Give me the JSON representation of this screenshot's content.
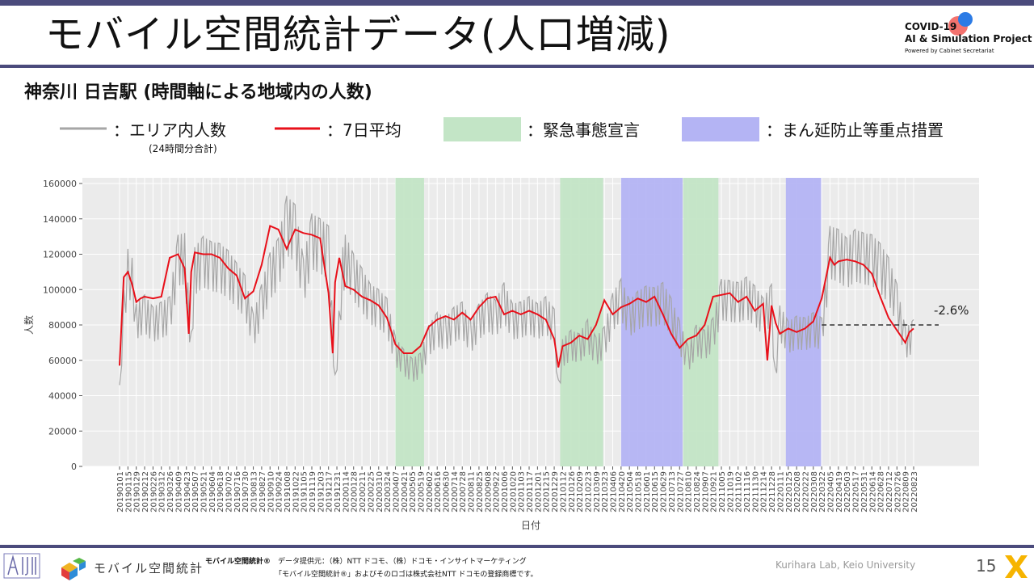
{
  "header": {
    "title": "モバイル空間統計データ(人口増減)",
    "logo_line1": "COVID-19",
    "logo_line2": "AI & Simulation Project",
    "logo_line3": "Powered by Cabinet Secretariat"
  },
  "colors": {
    "band": "#4b4b7c",
    "raw_line": "#a6a6a6",
    "avg_line": "#e8101a",
    "emergency": "#c3e5c6",
    "priority": "#b4b4f4",
    "plot_bg": "#ebebeb",
    "dashed": "#333333"
  },
  "subtitle": "神奈川 日吉駅 (時間軸による地域内の人数)",
  "legend": {
    "raw_label": "：エリア内人数",
    "raw_note": "(24時間分合計)",
    "avg_label": "：7日平均",
    "emergency_label": "：緊急事態宣言",
    "priority_label": "：まん延防止等重点措置"
  },
  "chart_data": {
    "type": "line",
    "xlabel": "日付",
    "ylabel": "人数",
    "ylim": [
      0,
      160000
    ],
    "yticks": [
      0,
      20000,
      40000,
      60000,
      80000,
      100000,
      120000,
      140000,
      160000
    ],
    "xticks": [
      "20190101",
      "20190115",
      "20190129",
      "20190212",
      "20190226",
      "20190312",
      "20190326",
      "20190409",
      "20190423",
      "20190507",
      "20190521",
      "20190604",
      "20190618",
      "20190702",
      "20190716",
      "20190730",
      "20190813",
      "20190827",
      "20190910",
      "20190924",
      "20191008",
      "20191022",
      "20191105",
      "20191119",
      "20191203",
      "20191217",
      "20191231",
      "20200114",
      "20200128",
      "20200211",
      "20200225",
      "20200310",
      "20200324",
      "20200407",
      "20200421",
      "20200505",
      "20200519",
      "20200602",
      "20200616",
      "20200630",
      "20200714",
      "20200728",
      "20200811",
      "20200825",
      "20200908",
      "20200922",
      "20201006",
      "20201020",
      "20201103",
      "20201117",
      "20201201",
      "20201215",
      "20201229",
      "20210112",
      "20210126",
      "20210209",
      "20210223",
      "20210309",
      "20210323",
      "20210406",
      "20210420",
      "20210504",
      "20210518",
      "20210601",
      "20210615",
      "20210629",
      "20210713",
      "20210727",
      "20210810",
      "20210824",
      "20210907",
      "20210921",
      "20211005",
      "20211019",
      "20211102",
      "20211116",
      "20211130",
      "20211214",
      "20211228",
      "20220111",
      "20220125",
      "20220208",
      "20220222",
      "20220308",
      "20220322",
      "20220405",
      "20220419",
      "20220503",
      "20220517",
      "20220531",
      "20220614",
      "20220628",
      "20220712",
      "20220726",
      "20220809",
      "20220823"
    ],
    "periods": [
      {
        "type": "emergency",
        "start": "20200407",
        "end": "20200525"
      },
      {
        "type": "emergency",
        "start": "20210108",
        "end": "20210321"
      },
      {
        "type": "priority",
        "start": "20210420",
        "end": "20210801"
      },
      {
        "type": "emergency",
        "start": "20210802",
        "end": "20210930"
      },
      {
        "type": "priority",
        "start": "20220121",
        "end": "20220321"
      }
    ],
    "series": [
      {
        "name": "エリア内人数",
        "style": "raw",
        "x": [
          "20190101",
          "20190108",
          "20190115",
          "20190122",
          "20190129",
          "20190212",
          "20190226",
          "20190312",
          "20190326",
          "20190409",
          "20190420",
          "20190501",
          "20190507",
          "20190521",
          "20190604",
          "20190618",
          "20190702",
          "20190716",
          "20190730",
          "20190813",
          "20190827",
          "20190910",
          "20190924",
          "20191008",
          "20191022",
          "20191105",
          "20191119",
          "20191203",
          "20191217",
          "20191228",
          "20200110",
          "20200114",
          "20200128",
          "20200211",
          "20200225",
          "20200310",
          "20200324",
          "20200407",
          "20200421",
          "20200505",
          "20200519",
          "20200602",
          "20200616",
          "20200630",
          "20200714",
          "20200728",
          "20200811",
          "20200825",
          "20200908",
          "20200922",
          "20201006",
          "20201020",
          "20201103",
          "20201117",
          "20201201",
          "20201215",
          "20201229",
          "20210105",
          "20210112",
          "20210126",
          "20210209",
          "20210223",
          "20210309",
          "20210323",
          "20210406",
          "20210420",
          "20210504",
          "20210518",
          "20210601",
          "20210615",
          "20210629",
          "20210713",
          "20210727",
          "20210810",
          "20210824",
          "20210907",
          "20210921",
          "20211005",
          "20211019",
          "20211102",
          "20211116",
          "20211130",
          "20211214",
          "20211228",
          "20220103",
          "20220111",
          "20220125",
          "20220208",
          "20220222",
          "20220308",
          "20220322",
          "20220405",
          "20220419",
          "20220503",
          "20220517",
          "20220531",
          "20220614",
          "20220628",
          "20220712",
          "20220726",
          "20220809",
          "20220823"
        ],
        "y": [
          46000,
          100000,
          123000,
          118000,
          92000,
          97000,
          90000,
          93000,
          96000,
          131000,
          132000,
          76000,
          124000,
          130000,
          127000,
          126000,
          122000,
          115000,
          108000,
          86000,
          103000,
          121000,
          129000,
          153000,
          148000,
          117000,
          143000,
          140000,
          136000,
          52000,
          124000,
          131000,
          120000,
          112000,
          103000,
          100000,
          95000,
          73000,
          66000,
          61000,
          64000,
          80000,
          87000,
          84000,
          90000,
          93000,
          82000,
          92000,
          98000,
          94000,
          104000,
          92000,
          93000,
          96000,
          92000,
          96000,
          89000,
          49000,
          72000,
          77000,
          75000,
          83000,
          73000,
          79000,
          98000,
          106000,
          94000,
          99000,
          102000,
          101000,
          104000,
          95000,
          82000,
          68000,
          80000,
          77000,
          84000,
          106000,
          105000,
          104000,
          107000,
          102000,
          95000,
          103000,
          56000,
          91000,
          82000,
          85000,
          84000,
          87000,
          84000,
          136000,
          134000,
          129000,
          134000,
          132000,
          131000,
          126000,
          118000,
          103000,
          78000,
          83000
        ]
      },
      {
        "name": "7日平均",
        "style": "avg",
        "x": [
          "20190101",
          "20190108",
          "20190115",
          "20190122",
          "20190129",
          "20190205",
          "20190212",
          "20190226",
          "20190312",
          "20190326",
          "20190409",
          "20190420",
          "20190427",
          "20190501",
          "20190507",
          "20190521",
          "20190604",
          "20190618",
          "20190702",
          "20190716",
          "20190730",
          "20190813",
          "20190827",
          "20190910",
          "20190924",
          "20191008",
          "20191022",
          "20191105",
          "20191119",
          "20191203",
          "20191217",
          "20191224",
          "20191228",
          "20200104",
          "20200114",
          "20200128",
          "20200211",
          "20200225",
          "20200310",
          "20200324",
          "20200407",
          "20200421",
          "20200505",
          "20200519",
          "20200602",
          "20200616",
          "20200630",
          "20200714",
          "20200728",
          "20200811",
          "20200825",
          "20200908",
          "20200922",
          "20201006",
          "20201020",
          "20201103",
          "20201117",
          "20201201",
          "20201215",
          "20201229",
          "20210105",
          "20210112",
          "20210126",
          "20210209",
          "20210223",
          "20210309",
          "20210323",
          "20210406",
          "20210420",
          "20210504",
          "20210518",
          "20210601",
          "20210615",
          "20210629",
          "20210713",
          "20210727",
          "20210810",
          "20210824",
          "20210907",
          "20210921",
          "20211005",
          "20211019",
          "20211102",
          "20211116",
          "20211130",
          "20211214",
          "20211221",
          "20211228",
          "20220104",
          "20220111",
          "20220125",
          "20220208",
          "20220222",
          "20220308",
          "20220322",
          "20220405",
          "20220412",
          "20220419",
          "20220503",
          "20220517",
          "20220531",
          "20220614",
          "20220628",
          "20220712",
          "20220726",
          "20220809",
          "20220816",
          "20220823"
        ],
        "y": [
          57000,
          107000,
          110000,
          103000,
          93000,
          95000,
          96000,
          95000,
          96000,
          118000,
          120000,
          112000,
          75000,
          110000,
          121000,
          120000,
          120000,
          118000,
          112000,
          108000,
          95000,
          99000,
          114000,
          136000,
          134000,
          123000,
          134000,
          132000,
          131000,
          129000,
          98000,
          64000,
          104000,
          118000,
          102000,
          100000,
          96000,
          94000,
          91000,
          84000,
          69000,
          64000,
          64000,
          68000,
          79000,
          83000,
          85000,
          83000,
          87000,
          83000,
          90000,
          95000,
          96000,
          86000,
          88000,
          86000,
          88000,
          86000,
          83000,
          72000,
          56000,
          68000,
          70000,
          74000,
          72000,
          80000,
          94000,
          86000,
          90000,
          92000,
          95000,
          93000,
          96000,
          86000,
          75000,
          67000,
          72000,
          74000,
          80000,
          96000,
          97000,
          98000,
          93000,
          96000,
          88000,
          92000,
          60000,
          91000,
          81000,
          75000,
          78000,
          76000,
          78000,
          82000,
          95000,
          118000,
          114000,
          116000,
          117000,
          116000,
          114000,
          109000,
          96000,
          84000,
          77000,
          70000,
          76000,
          78000
        ]
      }
    ],
    "reference_value": 80000,
    "annotation": "-2.6%"
  },
  "footer": {
    "brand": "モバイル空間統計",
    "brand_small": "モバイル空間統計®",
    "source": "データ提供元：（株）NTT ドコモ、（株）ドコモ・インサイトマーケティング",
    "trademark": "「モバイル空間統計®」およびそのロゴは株式会社NTT ドコモの登録商標です。",
    "lab": "Kurihara Lab, Keio University",
    "page": "15"
  }
}
